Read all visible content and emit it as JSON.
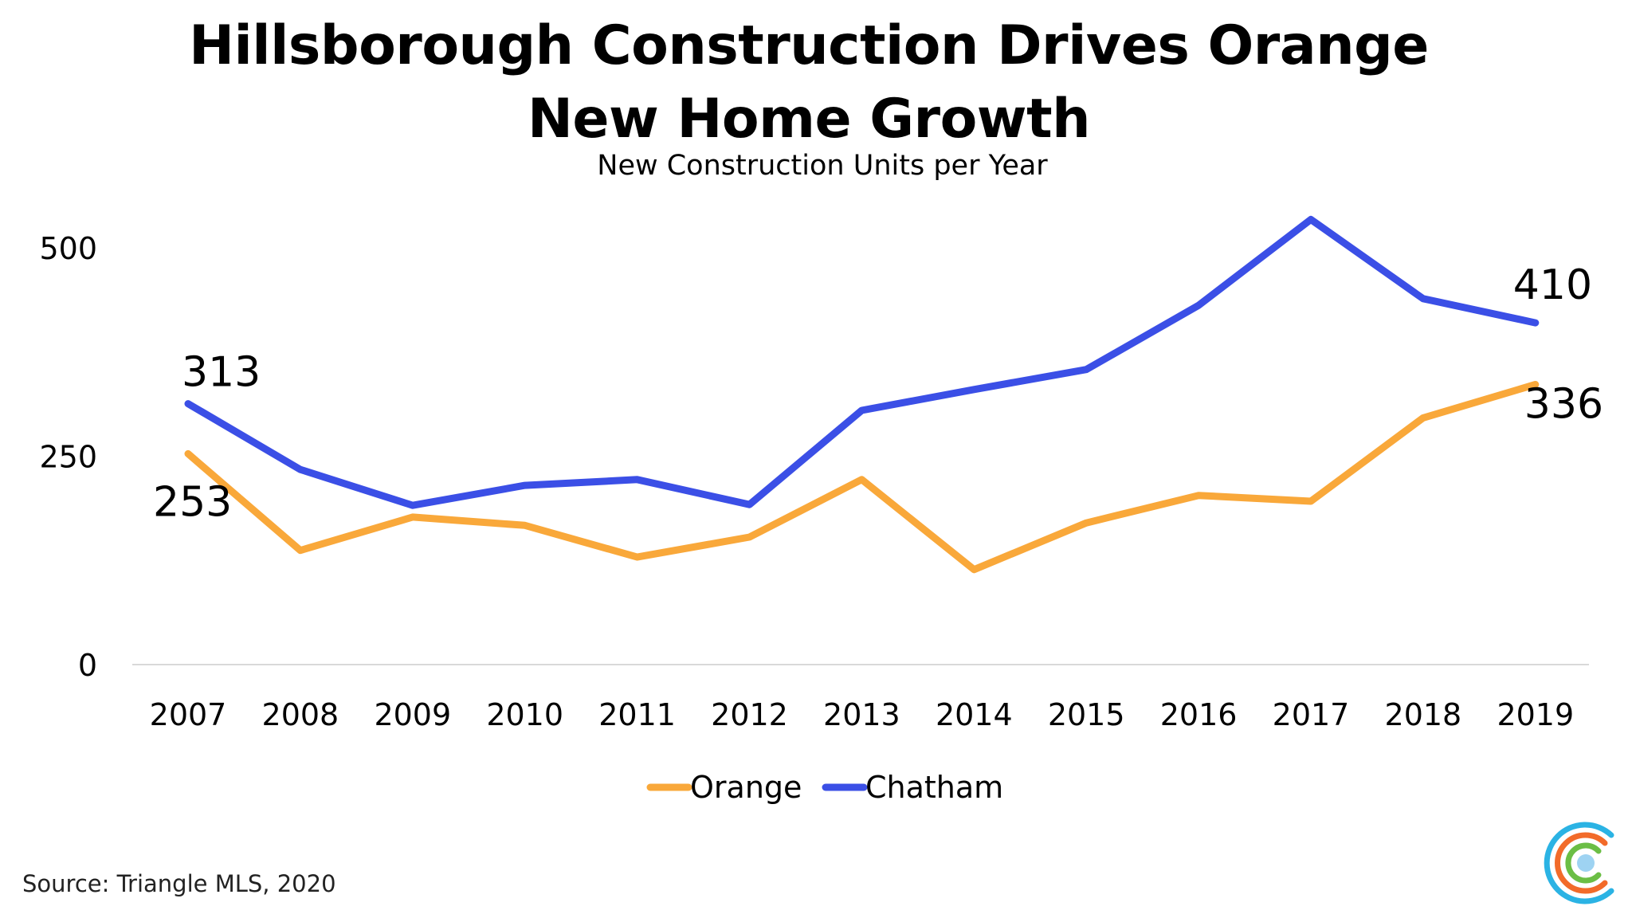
{
  "title_line1": "Hillsborough Construction Drives Orange",
  "title_line2": "New Home Growth",
  "subtitle": "New Construction Units per Year",
  "source": "Source: Triangle MLS, 2020",
  "colors": {
    "orange": "#F9A83A",
    "chatham": "#3B4FE6",
    "axis": "#d9d9d9"
  },
  "logo_icon": "concentric-c-logo-icon",
  "chart_data": {
    "type": "line",
    "title": "Hillsborough Construction Drives Orange New Home Growth",
    "subtitle": "New Construction Units per Year",
    "xlabel": "",
    "ylabel": "",
    "ylim": [
      0,
      500
    ],
    "yticks": [
      0,
      250,
      500
    ],
    "grid": false,
    "legend_position": "bottom",
    "x": [
      "2007",
      "2008",
      "2009",
      "2010",
      "2011",
      "2012",
      "2013",
      "2014",
      "2015",
      "2016",
      "2017",
      "2018",
      "2019"
    ],
    "series": [
      {
        "name": "Orange",
        "values": [
          253,
          137,
          177,
          167,
          129,
          153,
          222,
          114,
          170,
          203,
          196,
          296,
          336
        ]
      },
      {
        "name": "Chatham",
        "values": [
          313,
          234,
          191,
          215,
          222,
          192,
          305,
          330,
          354,
          431,
          534,
          439,
          410
        ]
      }
    ],
    "annotations": [
      {
        "series": "Chatham",
        "x": "2007",
        "text": "313"
      },
      {
        "series": "Orange",
        "x": "2007",
        "text": "253"
      },
      {
        "series": "Chatham",
        "x": "2019",
        "text": "410"
      },
      {
        "series": "Orange",
        "x": "2019",
        "text": "336"
      }
    ]
  }
}
